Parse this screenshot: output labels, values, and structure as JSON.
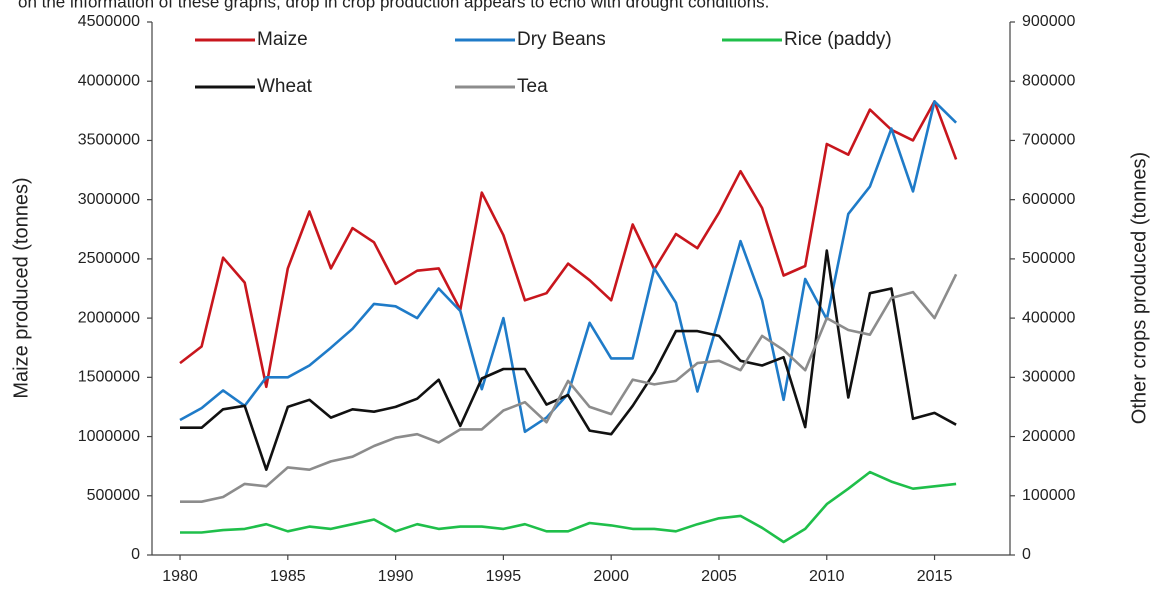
{
  "chart_data": {
    "type": "line",
    "annotation": "on the information of these graphs, drop in crop production appears to echo with drought conditions.",
    "ylabel": "Maize produced  (tonnes)",
    "y2label": "Other crops produced   (tonnes)",
    "x": [
      1980,
      1981,
      1982,
      1983,
      1984,
      1985,
      1986,
      1987,
      1988,
      1989,
      1990,
      1991,
      1992,
      1993,
      1994,
      1995,
      1996,
      1997,
      1998,
      1999,
      2000,
      2001,
      2002,
      2003,
      2004,
      2005,
      2006,
      2007,
      2008,
      2009,
      2010,
      2011,
      2012,
      2013,
      2014,
      2015,
      2016
    ],
    "xlim": [
      1978.7,
      2018.5
    ],
    "xticks": [
      1980,
      1985,
      1990,
      1995,
      2000,
      2005,
      2010,
      2015
    ],
    "ylim": [
      0,
      4500000
    ],
    "yticks": [
      0,
      500000,
      1000000,
      1500000,
      2000000,
      2500000,
      3000000,
      3500000,
      4000000,
      4500000
    ],
    "y2lim": [
      0,
      900000
    ],
    "y2ticks": [
      0,
      100000,
      200000,
      300000,
      400000,
      500000,
      600000,
      700000,
      800000,
      900000
    ],
    "grid": false,
    "legend": "top",
    "series": [
      {
        "name": "Maize",
        "color": "#c8161d",
        "axis": "y",
        "values": [
          1620000,
          1760000,
          2510000,
          2300000,
          1420000,
          2420000,
          2900000,
          2420000,
          2760000,
          2640000,
          2290000,
          2400000,
          2420000,
          2070000,
          3060000,
          2700000,
          2150000,
          2210000,
          2460000,
          2320000,
          2150000,
          2790000,
          2410000,
          2710000,
          2590000,
          2890000,
          3240000,
          2930000,
          2360000,
          2440000,
          3470000,
          3380000,
          3760000,
          3590000,
          3500000,
          3830000,
          3340000
        ]
      },
      {
        "name": "Dry Beans",
        "color": "#1f7bc8",
        "axis": "y2",
        "values": [
          228000,
          248000,
          278000,
          252000,
          300000,
          300000,
          320000,
          350000,
          382000,
          424000,
          420000,
          400000,
          450000,
          412000,
          280000,
          400000,
          208000,
          232000,
          272000,
          392000,
          332000,
          332000,
          484000,
          426000,
          276000,
          400000,
          530000,
          430000,
          262000,
          466000,
          398000,
          576000,
          622000,
          720000,
          614000,
          766000,
          730000
        ]
      },
      {
        "name": "Rice (paddy)",
        "color": "#1fbf4a",
        "axis": "y2",
        "values": [
          38000,
          38000,
          42000,
          44000,
          52000,
          40000,
          48000,
          44000,
          52000,
          60000,
          40000,
          52000,
          44000,
          48000,
          48000,
          44000,
          52000,
          40000,
          40000,
          54000,
          50000,
          44000,
          44000,
          40000,
          52000,
          62000,
          66000,
          46000,
          22000,
          44000,
          86000,
          112000,
          140000,
          124000,
          112000,
          116000,
          120000
        ]
      },
      {
        "name": "Wheat",
        "color": "#111111",
        "axis": "y2",
        "values": [
          215000,
          215000,
          246000,
          252000,
          144000,
          250000,
          262000,
          232000,
          246000,
          242000,
          250000,
          264000,
          296000,
          218000,
          298000,
          314000,
          314000,
          254000,
          270000,
          210000,
          204000,
          252000,
          308000,
          378000,
          378000,
          370000,
          328000,
          320000,
          334000,
          216000,
          514000,
          266000,
          442000,
          450000,
          230000,
          240000,
          220000
        ]
      },
      {
        "name": "Tea",
        "color": "#8c8c8c",
        "axis": "y2",
        "values": [
          90000,
          90000,
          98000,
          120000,
          116000,
          148000,
          144000,
          158000,
          166000,
          184000,
          198000,
          204000,
          190000,
          212000,
          212000,
          244000,
          258000,
          224000,
          294000,
          250000,
          238000,
          296000,
          288000,
          294000,
          324000,
          328000,
          312000,
          370000,
          346000,
          312000,
          400000,
          380000,
          372000,
          434000,
          444000,
          400000,
          474000
        ]
      }
    ]
  }
}
